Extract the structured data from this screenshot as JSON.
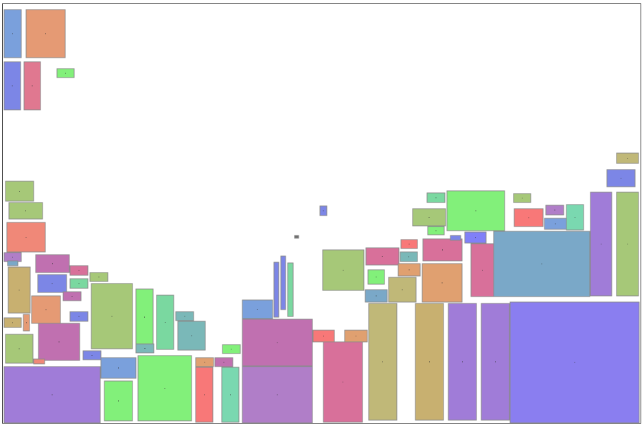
{
  "diagram": {
    "type": "rectangle-packing",
    "frame_color": "#333333",
    "rect_stroke": "#8a8a8a",
    "palette": {
      "blue": "#7aa0dc",
      "salmon": "#e59a74",
      "indigo": "#7c86e6",
      "pink": "#e07890",
      "green": "#82f07a",
      "olive": "#a6c878",
      "coral": "#f08878",
      "violet": "#b07ec8",
      "tan": "#c8b070",
      "bluegray": "#7aa8c8",
      "orchid": "#c070b0",
      "mint": "#7ad8a0",
      "teal": "#7ab8b8",
      "purple": "#a07cd8",
      "rose": "#d8709a",
      "sage": "#b0c870",
      "khaki": "#c0b878",
      "lavender": "#8a7ef0",
      "red": "#f87878",
      "orange": "#e0a070",
      "gray": "#707070",
      "periwinkle": "#8080f8",
      "seafoam": "#7ad8b0"
    }
  }
}
